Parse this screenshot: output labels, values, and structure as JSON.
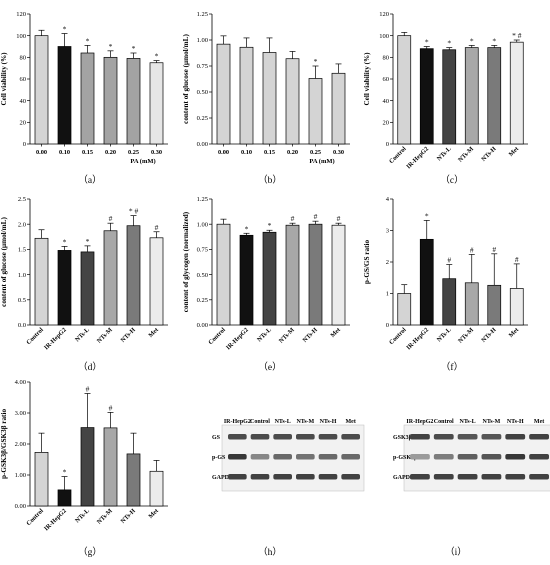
{
  "chart_data": [
    {
      "id": "a",
      "panel_label": "（a）",
      "type": "bar",
      "categories": [
        "0.00",
        "0.10",
        "0.15",
        "0.20",
        "0.25",
        "0.30"
      ],
      "values": [
        100,
        90,
        84,
        80,
        79,
        75
      ],
      "errors": [
        5,
        12,
        7,
        6,
        5,
        2
      ],
      "colors": [
        "#d4d4d4",
        "#111111",
        "#a3a3a3",
        "#a3a3a3",
        "#a3a3a3",
        "#e6e6e6"
      ],
      "annotations": [
        "",
        "*",
        "*",
        "*",
        "*",
        "*"
      ],
      "ylabel": "Cell viability (%)",
      "xlabel": "PA (mM)",
      "ylim": [
        0,
        120
      ],
      "yticks": [
        0,
        20,
        40,
        60,
        80,
        100,
        120
      ]
    },
    {
      "id": "b",
      "panel_label": "（b）",
      "type": "bar",
      "categories": [
        "0.00",
        "0.10",
        "0.15",
        "0.20",
        "0.25",
        "0.30"
      ],
      "values": [
        0.96,
        0.93,
        0.88,
        0.82,
        0.63,
        0.68
      ],
      "errors": [
        0.08,
        0.09,
        0.14,
        0.07,
        0.12,
        0.09
      ],
      "colors": [
        "#d4d4d4",
        "#d4d4d4",
        "#d4d4d4",
        "#d4d4d4",
        "#d4d4d4",
        "#d4d4d4"
      ],
      "annotations": [
        "",
        "",
        "",
        "",
        "*",
        ""
      ],
      "ylabel": "content of glucose (μmol/mL)",
      "xlabel": "PA (mM)",
      "ylim": [
        0,
        1.25
      ],
      "yticks": [
        "0.00",
        "0.25",
        "0.50",
        "0.75",
        "1.00",
        "1.25"
      ]
    },
    {
      "id": "c",
      "panel_label": "（c）",
      "type": "bar",
      "categories": [
        "Control",
        "IR-HepG2",
        "NTs-L",
        "NTs-M",
        "NTs-H",
        "Met"
      ],
      "values": [
        100,
        88,
        87,
        89,
        89,
        94
      ],
      "errors": [
        3,
        2,
        2,
        2,
        2,
        2
      ],
      "colors": [
        "#d4d4d4",
        "#111111",
        "#444444",
        "#a8a8a8",
        "#7a7a7a",
        "#ececec"
      ],
      "annotations": [
        "",
        "*",
        "*",
        "*",
        "*",
        "* #"
      ],
      "ylabel": "Cell viability (%)",
      "xlabel": "",
      "ylim": [
        0,
        120
      ],
      "yticks": [
        0,
        20,
        40,
        60,
        80,
        100,
        120
      ]
    },
    {
      "id": "d",
      "panel_label": "（d）",
      "type": "bar",
      "categories": [
        "Control",
        "IR-HepG2",
        "NTs-L",
        "NTs-M",
        "NTs-H",
        "Met"
      ],
      "values": [
        1.72,
        1.48,
        1.45,
        1.87,
        1.97,
        1.73
      ],
      "errors": [
        0.17,
        0.08,
        0.12,
        0.15,
        0.2,
        0.12
      ],
      "colors": [
        "#d4d4d4",
        "#111111",
        "#444444",
        "#a8a8a8",
        "#7a7a7a",
        "#ececec"
      ],
      "annotations": [
        "",
        "*",
        "*",
        "#",
        "* #",
        "#"
      ],
      "ylabel": "content of glucose (μmol/mL)",
      "xlabel": "",
      "ylim": [
        0,
        2.5
      ],
      "yticks": [
        "0.0",
        "0.5",
        "1.0",
        "1.5",
        "2.0",
        "2.5"
      ]
    },
    {
      "id": "e",
      "panel_label": "（e）",
      "type": "bar",
      "categories": [
        "Control",
        "IR-HepG2",
        "NTs-L",
        "NTs-M",
        "NTs-H",
        "Met"
      ],
      "values": [
        1.0,
        0.89,
        0.92,
        0.99,
        1.0,
        0.99
      ],
      "errors": [
        0.05,
        0.02,
        0.02,
        0.02,
        0.03,
        0.02
      ],
      "colors": [
        "#d4d4d4",
        "#111111",
        "#444444",
        "#a8a8a8",
        "#7a7a7a",
        "#ececec"
      ],
      "annotations": [
        "",
        "*",
        "*",
        "#",
        "#",
        "#"
      ],
      "ylabel": "content of glycogen (normalized)",
      "xlabel": "",
      "ylim": [
        0,
        1.25
      ],
      "yticks": [
        "0.00",
        "0.25",
        "0.50",
        "0.75",
        "1.00",
        "1.25"
      ]
    },
    {
      "id": "f",
      "panel_label": "（f）",
      "type": "bar",
      "categories": [
        "Control",
        "IR-HepG2",
        "NTs-L",
        "NTs-M",
        "NTs-H",
        "Met"
      ],
      "values": [
        1.0,
        2.72,
        1.47,
        1.34,
        1.26,
        1.16
      ],
      "errors": [
        0.28,
        0.6,
        0.45,
        0.9,
        1.0,
        0.78
      ],
      "colors": [
        "#d4d4d4",
        "#111111",
        "#444444",
        "#a8a8a8",
        "#7a7a7a",
        "#ececec"
      ],
      "annotations": [
        "",
        "*",
        "#",
        "#",
        "#",
        "#"
      ],
      "ylabel": "p-GS/GS ratio",
      "xlabel": "",
      "ylim": [
        0,
        4
      ],
      "yticks": [
        0,
        1,
        2,
        3,
        4
      ]
    },
    {
      "id": "g",
      "panel_label": "（g）",
      "type": "bar",
      "categories": [
        "Control",
        "IR-HepG2",
        "NTs-L",
        "NTs-M",
        "NTs-H",
        "Met"
      ],
      "values": [
        1.73,
        0.52,
        2.53,
        2.52,
        1.68,
        1.12
      ],
      "errors": [
        0.62,
        0.43,
        1.1,
        0.5,
        0.67,
        0.35
      ],
      "colors": [
        "#d4d4d4",
        "#111111",
        "#444444",
        "#a8a8a8",
        "#7a7a7a",
        "#ececec"
      ],
      "annotations": [
        "",
        "*",
        "#",
        "#",
        "",
        ""
      ],
      "ylabel": "p-GSK3β/GSK3β ratio",
      "xlabel": "",
      "ylim": [
        0,
        4
      ],
      "yticks": [
        "0.00",
        "1.00",
        "2.00",
        "3.00",
        "4.00"
      ]
    }
  ],
  "blots": [
    {
      "id": "h",
      "panel_label": "（h）",
      "lanes": [
        "IR-HepG2",
        "Control",
        "NTs-L",
        "NTs-M",
        "NTs-H",
        "Met"
      ],
      "rows": [
        "GS",
        "p-GS",
        "GAPDH"
      ],
      "intensity": [
        [
          0.8,
          0.8,
          0.8,
          0.8,
          0.8,
          0.8
        ],
        [
          0.9,
          0.5,
          0.65,
          0.6,
          0.65,
          0.65
        ],
        [
          0.85,
          0.85,
          0.85,
          0.85,
          0.85,
          0.85
        ]
      ]
    },
    {
      "id": "i",
      "panel_label": "（i）",
      "lanes": [
        "IR-HepG2",
        "Control",
        "NTs-L",
        "NTs-M",
        "NTs-H",
        "Met"
      ],
      "rows": [
        "GSK3β",
        "p-GSK3β",
        "GAPDH"
      ],
      "intensity": [
        [
          0.85,
          0.8,
          0.75,
          0.75,
          0.85,
          0.85
        ],
        [
          0.4,
          0.55,
          0.7,
          0.75,
          0.9,
          0.85
        ],
        [
          0.85,
          0.85,
          0.85,
          0.85,
          0.85,
          0.85
        ]
      ]
    }
  ]
}
